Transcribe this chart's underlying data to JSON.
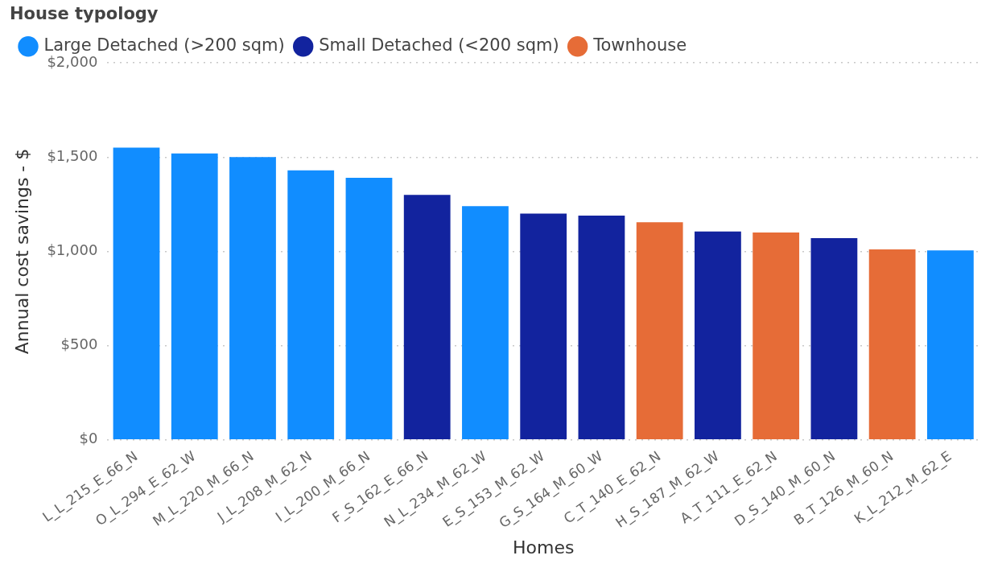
{
  "chart_data": {
    "type": "bar",
    "xlabel": "Homes",
    "ylabel": "Annual cost savings - $",
    "legend_title": "House typology",
    "categories": [
      "L_L_215_E_66_N",
      "O_L_294_E_62_W",
      "M_L_220_M_66_N",
      "J_L_208_M_62_N",
      "I_L_200_M_66_N",
      "F_S_162_E_66_N",
      "N_L_234_M_62_W",
      "E_S_153_M_62_W",
      "G_S_164_M_60_W",
      "C_T_140_E_62_N",
      "H_S_187_M_62_W",
      "A_T_111_E_62_N",
      "D_S_140_M_60_N",
      "B_T_126_M_60_N",
      "K_L_212_M_62_E"
    ],
    "series": [
      {
        "name": "Large Detached (>200 sqm)",
        "color": "#118dff",
        "values": [
          1550,
          1520,
          1500,
          1430,
          1390,
          null,
          1240,
          null,
          null,
          null,
          null,
          null,
          null,
          null,
          1005
        ]
      },
      {
        "name": "Small Detached (<200 sqm)",
        "color": "#12239e",
        "values": [
          null,
          null,
          null,
          null,
          null,
          1300,
          null,
          1200,
          1190,
          null,
          1105,
          null,
          1070,
          null,
          null
        ]
      },
      {
        "name": "Townhouse",
        "color": "#e66c37",
        "values": [
          null,
          null,
          null,
          null,
          null,
          null,
          null,
          null,
          null,
          1155,
          null,
          1100,
          null,
          1010,
          null
        ]
      }
    ],
    "ylim": [
      0,
      2000
    ],
    "yticks": [
      {
        "value": 0,
        "label": "$0"
      },
      {
        "value": 500,
        "label": "$500"
      },
      {
        "value": 1000,
        "label": "$1,000"
      },
      {
        "value": 1500,
        "label": "$1,500"
      },
      {
        "value": 2000,
        "label": "$2,000"
      }
    ],
    "grid": "y",
    "legend": "top left"
  }
}
